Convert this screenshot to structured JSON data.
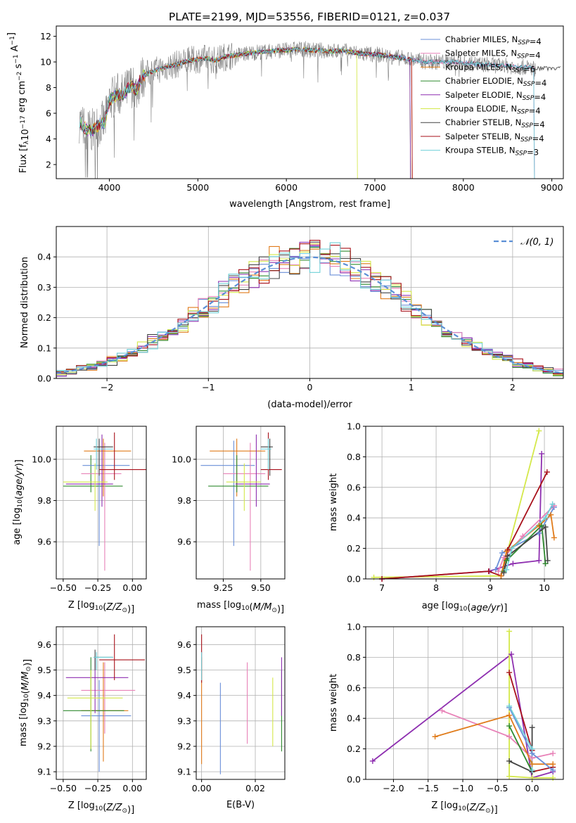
{
  "title": "PLATE=2199, MJD=53556, FIBERID=0121, z=0.037",
  "colors": {
    "chabrier_miles": "#6a8fd8",
    "salpeter_miles": "#e882b8",
    "kroupa_miles": "#e07b1a",
    "chabrier_elodie": "#2f8a2f",
    "salpeter_elodie": "#8e2fb0",
    "kroupa_elodie": "#d4e84a",
    "chabrier_stelib": "#444444",
    "salpeter_stelib": "#a8101a",
    "kroupa_stelib": "#6fd0d8",
    "data_grey": "#808080",
    "normal_curve": "#5b8fd6"
  },
  "legend": [
    {
      "name": "Chabrier MILES, N",
      "sub": "SSP",
      "tail": "=4"
    },
    {
      "name": "Salpeter MILES, N",
      "sub": "SSP",
      "tail": "=4"
    },
    {
      "name": "Kroupa MILES, N",
      "sub": "SSP",
      "tail": "=6"
    },
    {
      "name": "Chabrier ELODIE, N",
      "sub": "SSP",
      "tail": "=4"
    },
    {
      "name": "Salpeter ELODIE, N",
      "sub": "SSP",
      "tail": "=4"
    },
    {
      "name": "Kroupa ELODIE, N",
      "sub": "SSP",
      "tail": "=4"
    },
    {
      "name": "Chabrier STELIB, N",
      "sub": "SSP",
      "tail": "=4"
    },
    {
      "name": "Salpeter STELIB, N",
      "sub": "SSP",
      "tail": "=4"
    },
    {
      "name": "Kroupa STELIB, N",
      "sub": "SSP",
      "tail": "=3"
    }
  ],
  "chart_data": [
    {
      "type": "line",
      "panel": "spectrum",
      "xlabel": "wavelength [Angstrom, rest frame]",
      "ylabel_main": "Flux [f",
      "ylabel_sub": "λ",
      "ylabel_rest": "10",
      "ylabel_exp1": "−17",
      "ylabel_mid": " erg cm",
      "ylabel_exp2": "−2",
      "ylabel_s": " s",
      "ylabel_exp3": "−1",
      "ylabel_A": " A",
      "ylabel_exp4": "−1",
      "ylabel_end": "]",
      "xlim": [
        3400,
        9130
      ],
      "ylim": [
        0.9,
        12.8
      ],
      "xticks": [
        4000,
        5000,
        6000,
        7000,
        8000,
        9000
      ],
      "yticks": [
        2,
        4,
        6,
        8,
        10,
        12
      ],
      "spectrum_x": [
        3660,
        3700,
        3750,
        3800,
        3850,
        3900,
        3950,
        4000,
        4050,
        4100,
        4150,
        4200,
        4250,
        4300,
        4350,
        4400,
        4500,
        4600,
        4700,
        4800,
        4900,
        5000,
        5100,
        5200,
        5300,
        5400,
        5500,
        5600,
        5700,
        5800,
        5900,
        6000,
        6100,
        6200,
        6300,
        6400,
        6500,
        6600,
        6700,
        6800,
        6900,
        7000,
        7100,
        7200,
        7300,
        7400,
        7500,
        7600,
        7700,
        7800,
        7900,
        8000,
        8100,
        8200,
        8300,
        8400,
        8500,
        8600,
        8700,
        8800
      ],
      "spectrum_y": [
        5.4,
        5.0,
        4.7,
        4.6,
        4.9,
        5.2,
        5.3,
        7.0,
        7.3,
        7.5,
        7.4,
        7.8,
        8.2,
        7.7,
        8.6,
        9.0,
        9.3,
        9.5,
        9.7,
        9.9,
        10.1,
        10.2,
        10.3,
        10.1,
        10.4,
        10.5,
        10.6,
        10.7,
        10.8,
        10.8,
        10.9,
        10.9,
        11.0,
        11.0,
        10.9,
        10.9,
        10.8,
        10.9,
        10.8,
        10.7,
        10.6,
        10.6,
        10.5,
        10.4,
        10.3,
        10.2,
        10.1,
        10.0,
        10.0,
        10.0,
        10.0,
        9.9,
        9.9,
        9.8,
        9.8,
        9.7,
        9.7,
        9.6,
        9.6,
        9.5
      ],
      "series_end_wavelength": [
        8800,
        8800,
        7420,
        7400,
        7400,
        6800,
        9100,
        7420,
        8800
      ]
    },
    {
      "type": "bar",
      "panel": "residual_histogram",
      "xlabel": "(data-model)/error",
      "ylabel": "Normed distribution",
      "legend_label": "𝒩(0, 1)",
      "xlim": [
        -2.5,
        2.5
      ],
      "ylim": [
        0,
        0.5
      ],
      "xticks": [
        -2,
        -1,
        0,
        1,
        2
      ],
      "yticks": [
        0.0,
        0.1,
        0.2,
        0.3,
        0.4
      ],
      "bin_width": 0.1,
      "bin_start": -2.5
    },
    {
      "type": "scatter",
      "panel": "age_vs_Z",
      "xlabel_pre": "Z [log",
      "xlabel_sub": "10",
      "xlabel_post": "(Z/Z",
      "xlabel_sun": "⊙",
      "xlabel_end": ")]",
      "ylabel_pre": "age  [log",
      "ylabel_sub": "10",
      "ylabel_post": "(age/yr)]",
      "xlim": [
        -0.55,
        0.1
      ],
      "ylim": [
        9.42,
        10.16
      ],
      "xticks": [
        -0.5,
        -0.25,
        0.0
      ],
      "xtick_labels": [
        "−0.50",
        "−0.25",
        "0.00"
      ],
      "yticks": [
        9.6,
        9.8,
        10.0
      ],
      "points": [
        {
          "x": -0.3,
          "xlo": -0.5,
          "xhi": -0.07,
          "y": 9.87,
          "ylo": 9.84,
          "yhi": 10.02,
          "c": "chabrier_elodie"
        },
        {
          "x": -0.24,
          "xlo": -0.36,
          "xhi": -0.02,
          "y": 9.97,
          "ylo": 9.58,
          "yhi": 10.09,
          "c": "chabrier_miles"
        },
        {
          "x": -0.2,
          "xlo": -0.37,
          "xhi": -0.08,
          "y": 9.93,
          "ylo": 9.46,
          "yhi": 10.08,
          "c": "salpeter_miles"
        },
        {
          "x": -0.21,
          "xlo": -0.35,
          "xhi": -0.01,
          "y": 10.04,
          "ylo": 9.82,
          "yhi": 10.1,
          "c": "kroupa_miles"
        },
        {
          "x": -0.22,
          "xlo": -0.48,
          "xhi": -0.14,
          "y": 9.88,
          "ylo": 9.77,
          "yhi": 10.12,
          "c": "salpeter_elodie"
        },
        {
          "x": -0.27,
          "xlo": -0.5,
          "xhi": -0.18,
          "y": 9.89,
          "ylo": 9.75,
          "yhi": 9.98,
          "c": "kroupa_elodie"
        },
        {
          "x": -0.24,
          "xlo": -0.28,
          "xhi": -0.14,
          "y": 10.06,
          "ylo": 9.92,
          "yhi": 10.1,
          "c": "chabrier_stelib"
        },
        {
          "x": -0.13,
          "xlo": -0.24,
          "xhi": 0.1,
          "y": 9.95,
          "ylo": 9.9,
          "yhi": 10.13,
          "c": "salpeter_stelib"
        },
        {
          "x": -0.26,
          "xlo": -0.28,
          "xhi": -0.14,
          "y": 10.05,
          "ylo": 9.95,
          "yhi": 10.1,
          "c": "kroupa_stelib"
        }
      ]
    },
    {
      "type": "scatter",
      "panel": "age_vs_mass",
      "xlabel_pre": "mass [log",
      "xlabel_sub": "10",
      "xlabel_post": "(M/M",
      "xlabel_sun": "⊙",
      "xlabel_end": ")]",
      "xlim": [
        9.07,
        9.66
      ],
      "ylim": [
        9.42,
        10.16
      ],
      "xticks": [
        9.25,
        9.5
      ],
      "xtick_labels": [
        "9.25",
        "9.50"
      ],
      "yticks": [
        9.6,
        9.8,
        10.0
      ],
      "points": [
        {
          "x": 9.32,
          "xlo": 9.1,
          "xhi": 9.46,
          "y": 9.97,
          "ylo": 9.58,
          "yhi": 10.09,
          "c": "chabrier_miles"
        },
        {
          "x": 9.43,
          "xlo": 9.25,
          "xhi": 9.53,
          "y": 9.93,
          "ylo": 9.46,
          "yhi": 10.08,
          "c": "salpeter_miles"
        },
        {
          "x": 9.34,
          "xlo": 9.16,
          "xhi": 9.53,
          "y": 10.04,
          "ylo": 9.82,
          "yhi": 10.1,
          "c": "kroupa_miles"
        },
        {
          "x": 9.34,
          "xlo": 9.15,
          "xhi": 9.55,
          "y": 9.87,
          "ylo": 9.84,
          "yhi": 10.02,
          "c": "chabrier_elodie"
        },
        {
          "x": 9.47,
          "xlo": 9.33,
          "xhi": 9.56,
          "y": 9.88,
          "ylo": 9.77,
          "yhi": 10.12,
          "c": "salpeter_elodie"
        },
        {
          "x": 9.39,
          "xlo": 9.27,
          "xhi": 9.5,
          "y": 9.89,
          "ylo": 9.75,
          "yhi": 9.98,
          "c": "kroupa_elodie"
        },
        {
          "x": 9.56,
          "xlo": 9.5,
          "xhi": 9.58,
          "y": 10.06,
          "ylo": 9.92,
          "yhi": 10.1,
          "c": "chabrier_stelib"
        },
        {
          "x": 9.55,
          "xlo": 9.5,
          "xhi": 9.64,
          "y": 9.95,
          "ylo": 9.9,
          "yhi": 10.13,
          "c": "salpeter_stelib"
        },
        {
          "x": 9.55,
          "xlo": 9.5,
          "xhi": 9.57,
          "y": 10.05,
          "ylo": 9.95,
          "yhi": 10.1,
          "c": "kroupa_stelib"
        }
      ]
    },
    {
      "type": "line",
      "panel": "mass_weight_vs_age",
      "xlabel_pre": "age  [log",
      "xlabel_sub": "10",
      "xlabel_post": "(age/yr)]",
      "ylabel": "mass weight",
      "xlim": [
        6.7,
        10.35
      ],
      "ylim": [
        0,
        1.0
      ],
      "xticks": [
        7,
        8,
        9,
        10
      ],
      "yticks": [
        0.0,
        0.2,
        0.4,
        0.6,
        0.8,
        1.0
      ],
      "series": [
        {
          "c": "kroupa_elodie",
          "x": [
            6.85,
            9.2,
            9.9
          ],
          "y": [
            0.01,
            0.02,
            0.97
          ]
        },
        {
          "c": "salpeter_elodie",
          "x": [
            7.0,
            8.98,
            9.42,
            9.9,
            9.95
          ],
          "y": [
            0.0,
            0.05,
            0.1,
            0.12,
            0.82
          ]
        },
        {
          "c": "salpeter_stelib",
          "x": [
            7.0,
            8.97,
            9.2,
            9.32,
            10.05
          ],
          "y": [
            0.0,
            0.05,
            0.02,
            0.19,
            0.7
          ]
        },
        {
          "c": "chabrier_miles",
          "x": [
            9.1,
            9.22,
            9.9,
            10.18
          ],
          "y": [
            0.06,
            0.17,
            0.3,
            0.47
          ]
        },
        {
          "c": "salpeter_miles",
          "x": [
            9.15,
            9.25,
            9.6,
            10.18
          ],
          "y": [
            0.05,
            0.14,
            0.28,
            0.48
          ]
        },
        {
          "c": "kroupa_miles",
          "x": [
            9.2,
            9.3,
            9.9,
            10.12,
            10.18
          ],
          "y": [
            0.02,
            0.18,
            0.35,
            0.42,
            0.27
          ]
        },
        {
          "c": "chabrier_elodie",
          "x": [
            9.25,
            9.3,
            9.95,
            10.02
          ],
          "y": [
            0.05,
            0.12,
            0.35,
            0.1
          ]
        },
        {
          "c": "chabrier_stelib",
          "x": [
            9.25,
            9.32,
            10.02,
            10.06
          ],
          "y": [
            0.04,
            0.15,
            0.34,
            0.12
          ]
        },
        {
          "c": "kroupa_stelib",
          "x": [
            9.3,
            9.4,
            10.02,
            10.15
          ],
          "y": [
            0.06,
            0.2,
            0.4,
            0.49
          ]
        }
      ]
    },
    {
      "type": "scatter",
      "panel": "mass_vs_Z",
      "xlabel_pre": "Z [log",
      "xlabel_sub": "10",
      "xlabel_post": "(Z/Z",
      "xlabel_sun": "⊙",
      "xlabel_end": ")]",
      "ylabel_pre": "mass [log",
      "ylabel_sub": "10",
      "ylabel_post": "(M/M",
      "ylabel_sun": "⊙",
      "ylabel_end": ")]",
      "xlim": [
        -0.55,
        0.1
      ],
      "ylim": [
        9.07,
        9.67
      ],
      "xticks": [
        -0.5,
        -0.25,
        0.0
      ],
      "xtick_labels": [
        "−0.50",
        "−0.25",
        "0.00"
      ],
      "yticks": [
        9.1,
        9.2,
        9.3,
        9.4,
        9.5,
        9.6
      ],
      "points": [
        {
          "x": -0.24,
          "xlo": -0.37,
          "xhi": -0.01,
          "y": 9.32,
          "ylo": 9.1,
          "yhi": 9.46,
          "c": "chabrier_miles"
        },
        {
          "x": -0.2,
          "xlo": -0.37,
          "xhi": 0.02,
          "y": 9.42,
          "ylo": 9.25,
          "yhi": 9.53,
          "c": "salpeter_miles"
        },
        {
          "x": -0.21,
          "xlo": -0.37,
          "xhi": -0.03,
          "y": 9.34,
          "ylo": 9.14,
          "yhi": 9.53,
          "c": "kroupa_miles"
        },
        {
          "x": -0.3,
          "xlo": -0.5,
          "xhi": -0.06,
          "y": 9.34,
          "ylo": 9.18,
          "yhi": 9.55,
          "c": "chabrier_elodie"
        },
        {
          "x": -0.27,
          "xlo": -0.48,
          "xhi": -0.03,
          "y": 9.47,
          "ylo": 9.33,
          "yhi": 9.55,
          "c": "salpeter_elodie"
        },
        {
          "x": -0.3,
          "xlo": -0.47,
          "xhi": -0.07,
          "y": 9.39,
          "ylo": 9.19,
          "yhi": 9.5,
          "c": "kroupa_elodie"
        },
        {
          "x": -0.27,
          "xlo": -0.28,
          "xhi": -0.14,
          "y": 9.55,
          "ylo": 9.5,
          "yhi": 9.58,
          "c": "chabrier_stelib"
        },
        {
          "x": -0.13,
          "xlo": -0.24,
          "xhi": 0.09,
          "y": 9.54,
          "ylo": 9.46,
          "yhi": 9.64,
          "c": "salpeter_stelib"
        },
        {
          "x": -0.26,
          "xlo": -0.28,
          "xhi": -0.14,
          "y": 9.55,
          "ylo": 9.5,
          "yhi": 9.57,
          "c": "kroupa_stelib"
        }
      ]
    },
    {
      "type": "scatter",
      "panel": "mass_vs_ebv",
      "xlabel": "E(B-V)",
      "xlim": [
        -0.002,
        0.031
      ],
      "ylim": [
        9.07,
        9.67
      ],
      "xticks": [
        0.0,
        0.02
      ],
      "xtick_labels": [
        "0.00",
        "0.02"
      ],
      "yticks": [
        9.1,
        9.2,
        9.3,
        9.4,
        9.5,
        9.6
      ],
      "points": [
        {
          "x": 0.0,
          "ylo": 9.13,
          "yhi": 9.55,
          "c": "kroupa_miles"
        },
        {
          "x": 0.0,
          "ylo": 9.45,
          "yhi": 9.64,
          "c": "salpeter_stelib"
        },
        {
          "x": 0.0,
          "ylo": 9.46,
          "yhi": 9.57,
          "c": "kroupa_stelib"
        },
        {
          "x": 0.007,
          "ylo": 9.09,
          "yhi": 9.45,
          "c": "chabrier_miles"
        },
        {
          "x": 0.017,
          "ylo": 9.21,
          "yhi": 9.53,
          "c": "salpeter_miles"
        },
        {
          "x": 0.0265,
          "ylo": 9.2,
          "yhi": 9.47,
          "c": "kroupa_elodie"
        },
        {
          "x": 0.0298,
          "ylo": 9.18,
          "yhi": 9.5,
          "c": "chabrier_elodie"
        },
        {
          "x": 0.0298,
          "ylo": 9.32,
          "yhi": 9.55,
          "c": "salpeter_elodie"
        }
      ]
    },
    {
      "type": "line",
      "panel": "mass_weight_vs_Z",
      "xlabel_pre": "Z [log",
      "xlabel_sub": "10",
      "xlabel_post": "(Z/Z",
      "xlabel_sun": "⊙",
      "xlabel_end": ")]",
      "ylabel": "mass weight",
      "xlim": [
        -2.4,
        0.45
      ],
      "ylim": [
        0,
        1.0
      ],
      "xticks": [
        -2.0,
        -1.5,
        -1.0,
        -0.5,
        0.0
      ],
      "xtick_labels": [
        "−2.0",
        "−1.5",
        "−1.0",
        "−0.5",
        "0.0"
      ],
      "yticks": [
        0.0,
        0.2,
        0.4,
        0.6,
        0.8,
        1.0
      ],
      "series": [
        {
          "c": "salpeter_elodie",
          "x": [
            -2.3,
            -0.3,
            0.0,
            0.3
          ],
          "y": [
            0.12,
            0.82,
            0.01,
            0.05
          ]
        },
        {
          "c": "kroupa_elodie",
          "x": [
            -0.33,
            -0.33,
            0.0,
            0.3
          ],
          "y": [
            0.97,
            0.02,
            0.01,
            0.01
          ]
        },
        {
          "c": "salpeter_stelib",
          "x": [
            -0.33,
            0.0,
            0.0,
            0.3
          ],
          "y": [
            0.7,
            0.19,
            0.05,
            0.08
          ]
        },
        {
          "c": "salpeter_miles",
          "x": [
            -1.3,
            -0.33,
            0.0,
            0.3
          ],
          "y": [
            0.45,
            0.28,
            0.14,
            0.17
          ]
        },
        {
          "c": "kroupa_miles",
          "x": [
            -1.4,
            -0.33,
            0.0,
            0.3
          ],
          "y": [
            0.28,
            0.42,
            0.1,
            0.1
          ]
        },
        {
          "c": "chabrier_miles",
          "x": [
            -0.33,
            0.0,
            0.3
          ],
          "y": [
            0.47,
            0.17,
            0.06
          ]
        },
        {
          "c": "chabrier_elodie",
          "x": [
            -0.33,
            0.0
          ],
          "y": [
            0.35,
            0.05
          ]
        },
        {
          "c": "chabrier_stelib",
          "x": [
            -0.33,
            0.0,
            0.0
          ],
          "y": [
            0.12,
            0.05,
            0.34
          ]
        },
        {
          "c": "kroupa_stelib",
          "x": [
            -0.33,
            0.0,
            0.0
          ],
          "y": [
            0.48,
            0.2,
            0.06
          ]
        }
      ]
    }
  ]
}
